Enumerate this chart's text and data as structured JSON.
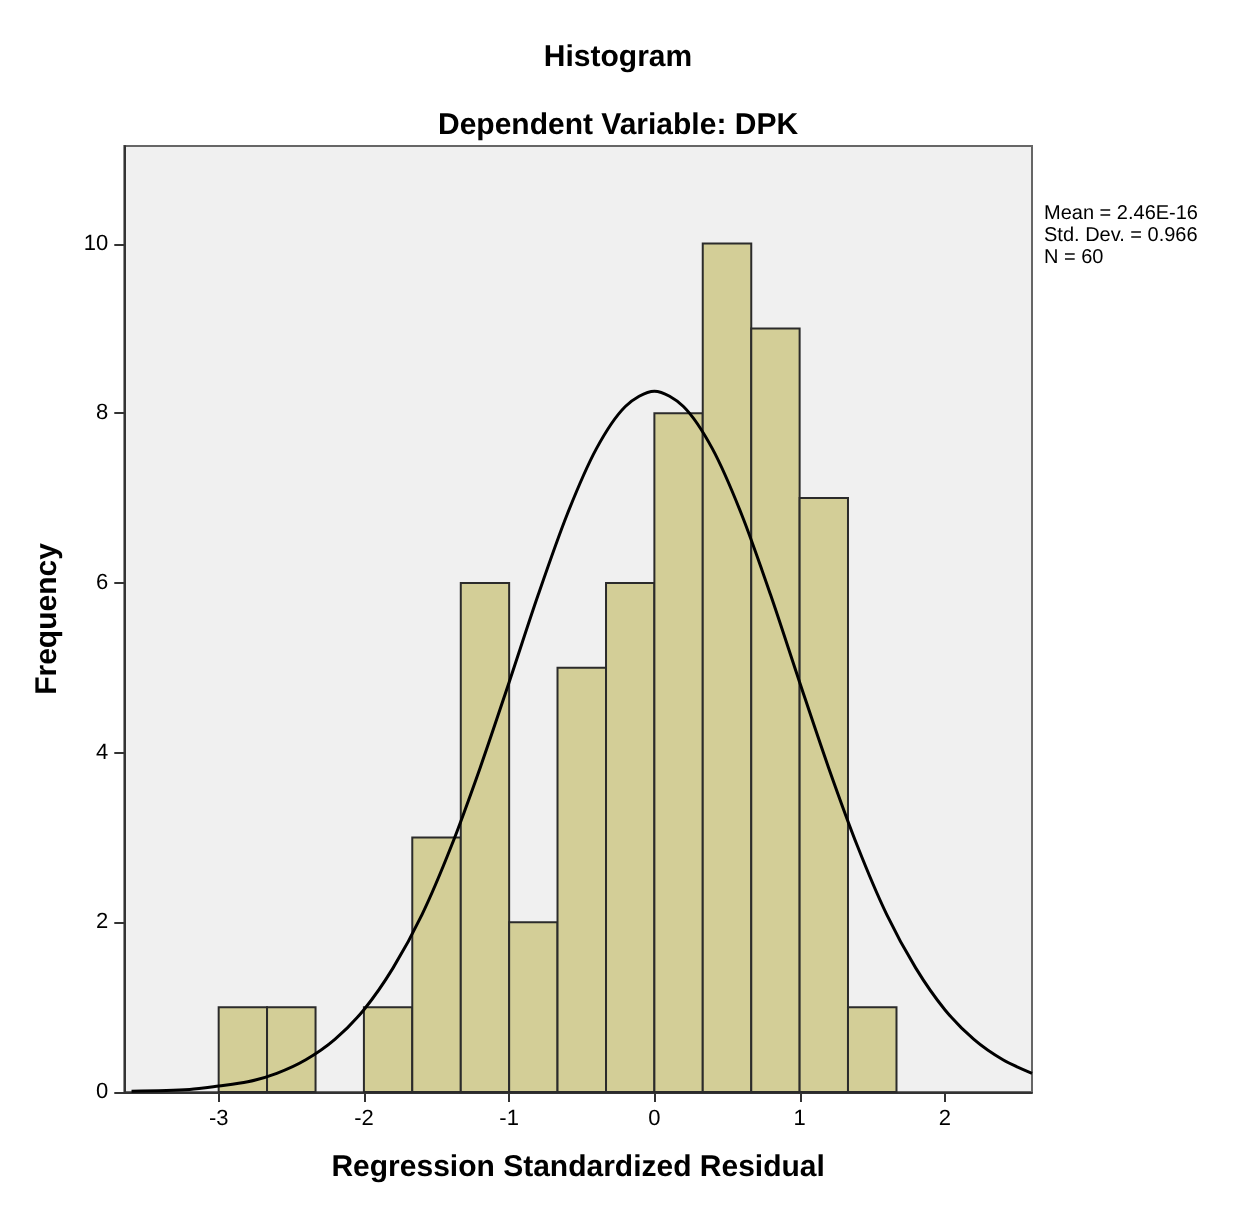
{
  "chart_data": {
    "type": "histogram",
    "title": "Histogram",
    "subtitle": "Dependent Variable: DPK",
    "xlabel": "Regression Standardized Residual",
    "ylabel": "Frequency",
    "bins": [
      -3,
      -2.667,
      -2.333,
      -2,
      -1.667,
      -1.333,
      -1,
      -0.667,
      -0.333,
      0,
      0.333,
      0.667,
      1,
      1.333,
      1.667
    ],
    "values": [
      1,
      1,
      0,
      1,
      3,
      6,
      2,
      5,
      6,
      8,
      10,
      9,
      7,
      1
    ],
    "color": "#d3ce97",
    "series": [
      {
        "type": "line",
        "color": "#000000",
        "x": [
          -3.6,
          -3.2,
          -3,
          -2.8,
          -2.6,
          -2.4,
          -2.2,
          -2,
          -1.8,
          -1.6,
          -1.4,
          -1.2,
          -1,
          -0.8,
          -0.6,
          -0.4,
          -0.2,
          0,
          0.2,
          0.4,
          0.6,
          0.8,
          1,
          1.2,
          1.4,
          1.6,
          1.8,
          2,
          2.2,
          2.4,
          2.6
        ],
        "values": [
          0.01,
          0.03,
          0.07,
          0.12,
          0.22,
          0.38,
          0.62,
          0.97,
          1.46,
          2.09,
          2.89,
          3.82,
          4.83,
          5.86,
          6.81,
          7.58,
          8.08,
          8.26,
          8.08,
          7.58,
          6.81,
          5.86,
          4.83,
          3.82,
          2.89,
          2.09,
          1.46,
          0.97,
          0.62,
          0.38,
          0.22
        ]
      }
    ],
    "annotations": [
      "Mean = 2.46E-16",
      "Std. Dev. = 0.966",
      "N = 60"
    ],
    "xlim": [
      -3.65,
      2.6
    ],
    "xticks": [
      -3,
      -2,
      -1,
      0,
      1,
      2
    ],
    "ylim": [
      0,
      11.15
    ],
    "yticks": [
      0,
      2,
      4,
      6,
      8,
      10
    ],
    "grid": false,
    "marker": "none",
    "line_style": "solid"
  }
}
